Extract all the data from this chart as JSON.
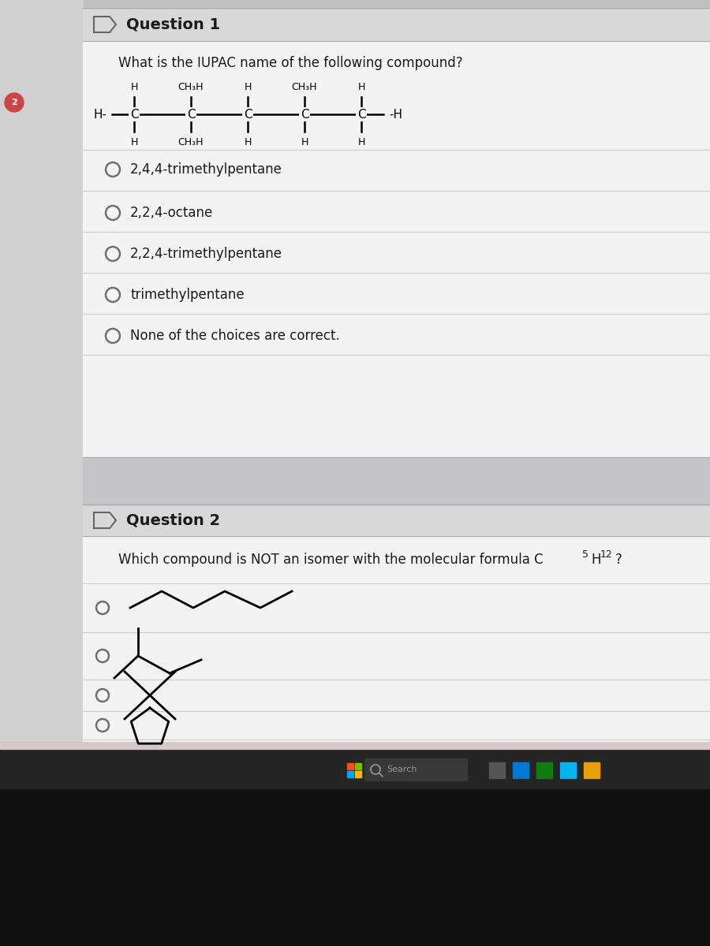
{
  "q1_title": "Question 1",
  "q1_question": "What is the IUPAC name of the following compound?",
  "q1_choices": [
    "2,4,4-trimethylpentane",
    "2,2,4-octane",
    "2,2,4-trimethylpentane",
    "trimethylpentane",
    "None of the choices are correct."
  ],
  "q2_title": "Question 2",
  "q2_question": "Which compound is NOT an isomer with the molecular formula C₅H₁₂?",
  "bg_outer": "#c0bfc0",
  "bg_content": "#ebebeb",
  "bg_white": "#f3f3f3",
  "bg_header": "#d8d8d8",
  "bg_taskbar": "#252525",
  "bg_dark_bottom": "#1a1a1a",
  "text_dark": "#1a1a1a",
  "line_color": "#cccccc",
  "line_color2": "#aaaaaa",
  "circle_color": "#707070"
}
